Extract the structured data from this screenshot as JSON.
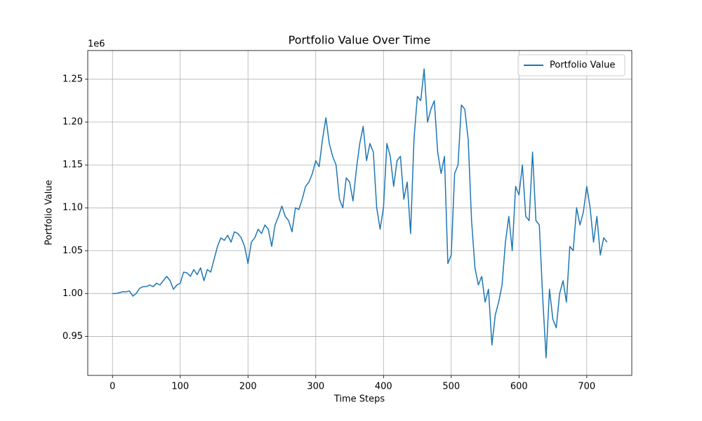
{
  "chart_data": {
    "type": "line",
    "title": "Portfolio Value Over Time",
    "xlabel": "Time Steps",
    "ylabel": "Portfolio Value",
    "y_offset_label": "1e6",
    "x": [
      0,
      5,
      10,
      15,
      20,
      25,
      30,
      35,
      40,
      45,
      50,
      55,
      60,
      65,
      70,
      75,
      80,
      85,
      90,
      95,
      100,
      105,
      110,
      115,
      120,
      125,
      130,
      135,
      140,
      145,
      150,
      155,
      160,
      165,
      170,
      175,
      180,
      185,
      190,
      195,
      200,
      205,
      210,
      215,
      220,
      225,
      230,
      235,
      240,
      245,
      250,
      255,
      260,
      265,
      270,
      275,
      280,
      285,
      290,
      295,
      300,
      305,
      310,
      315,
      320,
      325,
      330,
      335,
      340,
      345,
      350,
      355,
      360,
      365,
      370,
      375,
      380,
      385,
      390,
      395,
      400,
      405,
      410,
      415,
      420,
      425,
      430,
      435,
      440,
      445,
      450,
      455,
      460,
      465,
      470,
      475,
      480,
      485,
      490,
      495,
      500,
      505,
      510,
      515,
      520,
      525,
      530,
      535,
      540,
      545,
      550,
      555,
      560,
      565,
      570,
      575,
      580,
      585,
      590,
      595,
      600,
      605,
      610,
      615,
      620,
      625,
      630,
      635,
      640,
      645,
      650,
      655,
      660,
      665,
      670,
      675,
      680,
      685,
      690,
      695,
      700,
      705,
      710,
      715,
      720,
      725,
      730
    ],
    "series": [
      {
        "name": "Portfolio Value",
        "color": "#1f77b4",
        "values": [
          1.0,
          1.0,
          1.001,
          1.002,
          1.002,
          1.003,
          0.997,
          1.0,
          1.006,
          1.008,
          1.008,
          1.01,
          1.008,
          1.012,
          1.01,
          1.015,
          1.02,
          1.015,
          1.005,
          1.01,
          1.012,
          1.025,
          1.024,
          1.02,
          1.028,
          1.022,
          1.03,
          1.015,
          1.028,
          1.025,
          1.04,
          1.055,
          1.065,
          1.062,
          1.068,
          1.06,
          1.072,
          1.07,
          1.065,
          1.055,
          1.035,
          1.06,
          1.065,
          1.075,
          1.07,
          1.08,
          1.075,
          1.055,
          1.08,
          1.09,
          1.102,
          1.09,
          1.085,
          1.072,
          1.1,
          1.098,
          1.11,
          1.125,
          1.13,
          1.14,
          1.155,
          1.148,
          1.18,
          1.205,
          1.175,
          1.16,
          1.15,
          1.11,
          1.1,
          1.135,
          1.13,
          1.108,
          1.145,
          1.175,
          1.195,
          1.155,
          1.175,
          1.165,
          1.1,
          1.075,
          1.1,
          1.175,
          1.16,
          1.125,
          1.155,
          1.16,
          1.11,
          1.13,
          1.07,
          1.18,
          1.23,
          1.225,
          1.262,
          1.2,
          1.215,
          1.225,
          1.165,
          1.14,
          1.16,
          1.035,
          1.045,
          1.14,
          1.15,
          1.22,
          1.215,
          1.18,
          1.085,
          1.03,
          1.01,
          1.02,
          0.99,
          1.005,
          0.94,
          0.975,
          0.99,
          1.01,
          1.06,
          1.09,
          1.05,
          1.125,
          1.115,
          1.15,
          1.09,
          1.085,
          1.165,
          1.085,
          1.08,
          0.995,
          0.925,
          1.005,
          0.97,
          0.96,
          1.0,
          1.015,
          0.99,
          1.055,
          1.05,
          1.1,
          1.08,
          1.095,
          1.125,
          1.1,
          1.06,
          1.09,
          1.045,
          1.065,
          1.06
        ]
      }
    ],
    "xlim": [
      -36.5,
      766.5
    ],
    "ylim": [
      0.9045,
      1.2835
    ],
    "xticks": [
      0,
      100,
      200,
      300,
      400,
      500,
      600,
      700
    ],
    "yticks": [
      0.95,
      {
        "value": 1,
        "label": "1.00"
      },
      1.05,
      {
        "value": 1.1,
        "label": "1.10"
      },
      1.15,
      {
        "value": 1.2,
        "label": "1.20"
      },
      1.25
    ],
    "grid": true,
    "legend": "upper right"
  }
}
